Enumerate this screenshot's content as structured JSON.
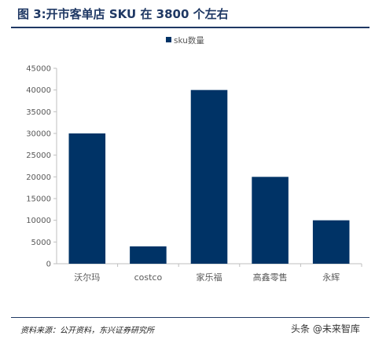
{
  "header": {
    "title": "图 3:开市客单店 SKU 在 3800 个左右"
  },
  "footer": {
    "source": "资料来源：公开资料，东兴证券研究所",
    "watermark": "头条 @未来智库"
  },
  "colors": {
    "bar": "#003366",
    "title": "#1f3864",
    "axis": "#bfbfbf",
    "text": "#595959"
  },
  "chart_data": {
    "type": "bar",
    "categories": [
      "沃尔玛",
      "costco",
      "家乐福",
      "高鑫零售",
      "永辉"
    ],
    "series": [
      {
        "name": "sku数量",
        "values": [
          30000,
          4000,
          40000,
          20000,
          10000
        ]
      }
    ],
    "ylim": [
      0,
      45000
    ],
    "yticks": [
      0,
      5000,
      10000,
      15000,
      20000,
      25000,
      30000,
      35000,
      40000,
      45000
    ],
    "legend_position": "top-center",
    "grid": false
  }
}
